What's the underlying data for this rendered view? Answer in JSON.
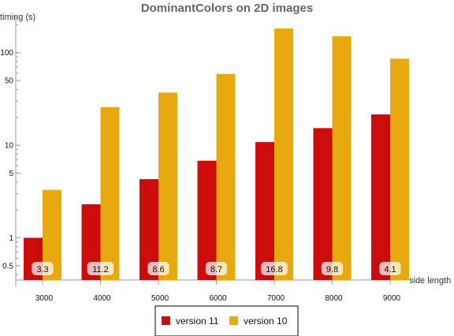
{
  "chart_data": {
    "type": "bar",
    "title": "DominantColors on 2D images",
    "ylabel": "timing (s)",
    "xlabel": "side length",
    "yscale": "log",
    "ylim": [
      0.35,
      260
    ],
    "categories": [
      "3000",
      "4000",
      "5000",
      "6000",
      "7000",
      "8000",
      "9000"
    ],
    "yticks": [
      {
        "value": 0.5,
        "label": "0.5"
      },
      {
        "value": 1,
        "label": "1"
      },
      {
        "value": 5,
        "label": "5"
      },
      {
        "value": 10,
        "label": "10"
      },
      {
        "value": 50,
        "label": "50"
      },
      {
        "value": 100,
        "label": "100"
      }
    ],
    "series": [
      {
        "name": "version 11",
        "color": "#cc0b0b",
        "values": [
          1.0,
          2.3,
          4.3,
          6.8,
          10.8,
          15.3,
          21.5
        ]
      },
      {
        "name": "version 10",
        "color": "#e8a90f",
        "values": [
          3.3,
          25.8,
          37.0,
          59.0,
          182.0,
          150.0,
          86.0
        ]
      }
    ],
    "speedup_labels": [
      "3.3",
      "11.2",
      "8.6",
      "8.7",
      "16.8",
      "9.8",
      "4.1"
    ],
    "legend_position": "bottom",
    "grid": false
  }
}
